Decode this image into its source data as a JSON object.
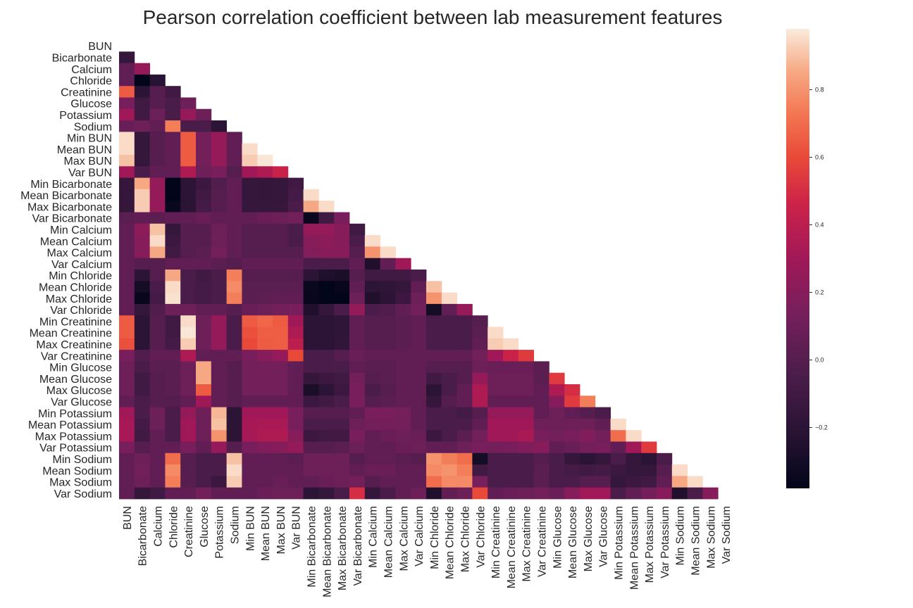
{
  "chart_data": {
    "type": "heatmap",
    "title": "Pearson correlation coefficient between lab measurement features",
    "mask": "upper-triangle",
    "labels": [
      "BUN",
      "Bicarbonate",
      "Calcium",
      "Chloride",
      "Creatinine",
      "Glucose",
      "Potassium",
      "Sodium",
      "Min BUN",
      "Mean BUN",
      "Max BUN",
      "Var BUN",
      "Min Bicarbonate",
      "Mean Bicarbonate",
      "Max Bicarbonate",
      "Var Bicarbonate",
      "Min Calcium",
      "Mean Calcium",
      "Max Calcium",
      "Var Calcium",
      "Min Chloride",
      "Mean Chloride",
      "Max Chloride",
      "Var Chloride",
      "Min Creatinine",
      "Mean Creatinine",
      "Max Creatinine",
      "Var Creatinine",
      "Min Glucose",
      "Mean Glucose",
      "Max Glucose",
      "Var Glucose",
      "Min Potassium",
      "Mean Potassium",
      "Max Potassium",
      "Var Potassium",
      "Min Sodium",
      "Mean Sodium",
      "Max Sodium",
      "Var Sodium"
    ],
    "colorbar": {
      "min": -0.38,
      "max": 0.98,
      "ticks": [
        -0.2,
        0.0,
        0.2,
        0.4,
        0.6,
        0.8
      ],
      "tick_labels": [
        "−0.2",
        "0.0",
        "0.2",
        "0.4",
        "0.6",
        "0.8"
      ],
      "colormap": "rocket"
    },
    "lower_triangle_rows": [
      [],
      [
        -0.15
      ],
      [
        0.05,
        0.25
      ],
      [
        0.05,
        -0.38,
        -0.22
      ],
      [
        0.65,
        -0.2,
        0.0,
        -0.1
      ],
      [
        0.15,
        -0.1,
        0.0,
        -0.05,
        0.1
      ],
      [
        0.3,
        -0.1,
        0.1,
        -0.05,
        0.25,
        0.1
      ],
      [
        0.08,
        0.1,
        0.05,
        0.75,
        -0.05,
        -0.05,
        -0.2
      ],
      [
        0.95,
        -0.15,
        0.0,
        0.05,
        0.65,
        0.12,
        0.25,
        0.05
      ],
      [
        0.95,
        -0.15,
        0.0,
        0.05,
        0.65,
        0.12,
        0.25,
        0.05,
        0.95
      ],
      [
        0.9,
        -0.15,
        0.0,
        0.05,
        0.65,
        0.12,
        0.25,
        0.05,
        0.92,
        0.97
      ],
      [
        0.3,
        -0.05,
        0.05,
        0.05,
        0.35,
        0.1,
        0.15,
        0.0,
        0.3,
        0.35,
        0.45
      ],
      [
        -0.15,
        0.85,
        0.25,
        -0.38,
        -0.2,
        -0.12,
        -0.02,
        0.05,
        -0.15,
        -0.16,
        -0.15,
        -0.1
      ],
      [
        -0.15,
        0.92,
        0.25,
        -0.38,
        -0.2,
        -0.1,
        0.0,
        0.05,
        -0.15,
        -0.16,
        -0.15,
        -0.08,
        0.95
      ],
      [
        -0.15,
        0.92,
        0.25,
        -0.35,
        -0.2,
        -0.08,
        0.0,
        0.05,
        -0.15,
        -0.15,
        -0.14,
        -0.05,
        0.85,
        0.95
      ],
      [
        0.02,
        0.05,
        0.02,
        0.05,
        0.05,
        0.08,
        0.05,
        0.05,
        0.05,
        0.08,
        0.1,
        0.12,
        -0.35,
        -0.1,
        0.15
      ],
      [
        0.05,
        0.22,
        0.9,
        -0.15,
        0.0,
        0.0,
        0.1,
        0.05,
        0.0,
        0.0,
        0.0,
        -0.05,
        0.25,
        0.25,
        0.2,
        -0.1
      ],
      [
        0.05,
        0.2,
        0.95,
        -0.12,
        0.0,
        0.0,
        0.1,
        0.05,
        0.0,
        0.0,
        0.0,
        -0.05,
        0.2,
        0.22,
        0.2,
        -0.05,
        0.95
      ],
      [
        0.05,
        0.2,
        0.85,
        -0.1,
        0.0,
        0.02,
        0.12,
        0.05,
        0.0,
        0.0,
        0.0,
        0.0,
        0.18,
        0.2,
        0.2,
        0.0,
        0.8,
        0.95
      ],
      [
        0.05,
        0.0,
        0.0,
        0.05,
        0.05,
        0.05,
        0.02,
        0.0,
        0.05,
        0.05,
        0.05,
        0.05,
        -0.05,
        -0.05,
        -0.05,
        0.05,
        -0.25,
        0.05,
        0.3
      ],
      [
        0.05,
        -0.2,
        0.0,
        0.85,
        -0.05,
        -0.1,
        -0.05,
        0.75,
        0.0,
        0.0,
        0.0,
        0.0,
        -0.2,
        -0.25,
        -0.28,
        0.0,
        -0.1,
        -0.1,
        -0.1,
        -0.05
      ],
      [
        0.05,
        -0.3,
        -0.05,
        0.95,
        -0.05,
        -0.08,
        -0.05,
        0.78,
        0.02,
        0.02,
        0.02,
        0.02,
        -0.35,
        -0.38,
        -0.36,
        0.05,
        -0.2,
        -0.18,
        -0.15,
        0.05,
        0.9
      ],
      [
        0.05,
        -0.36,
        -0.08,
        0.96,
        -0.05,
        -0.08,
        -0.05,
        0.75,
        0.02,
        0.03,
        0.05,
        0.05,
        -0.36,
        -0.38,
        -0.38,
        0.1,
        -0.25,
        -0.2,
        -0.12,
        0.1,
        0.8,
        0.95
      ],
      [
        0.05,
        -0.15,
        -0.02,
        0.1,
        0.1,
        0.05,
        0.05,
        0.0,
        0.08,
        0.1,
        0.12,
        0.15,
        -0.25,
        -0.15,
        -0.05,
        0.25,
        -0.05,
        -0.02,
        0.05,
        0.12,
        -0.3,
        0.05,
        0.25
      ],
      [
        0.65,
        -0.2,
        0.0,
        -0.1,
        0.95,
        0.1,
        0.25,
        -0.05,
        0.65,
        0.68,
        0.65,
        0.3,
        -0.2,
        -0.2,
        -0.18,
        0.05,
        0.0,
        0.0,
        0.02,
        0.05,
        -0.05,
        -0.05,
        -0.05,
        0.0
      ],
      [
        0.65,
        -0.2,
        0.0,
        -0.1,
        0.97,
        0.1,
        0.25,
        -0.05,
        0.62,
        0.66,
        0.66,
        0.35,
        -0.2,
        -0.2,
        -0.18,
        0.05,
        0.0,
        0.0,
        0.02,
        0.05,
        -0.05,
        -0.05,
        -0.05,
        0.02,
        0.95
      ],
      [
        0.62,
        -0.2,
        0.0,
        -0.08,
        0.92,
        0.1,
        0.25,
        -0.05,
        0.6,
        0.65,
        0.66,
        0.4,
        -0.2,
        -0.2,
        -0.17,
        0.05,
        0.0,
        0.0,
        0.02,
        0.05,
        -0.05,
        -0.05,
        -0.05,
        0.05,
        0.92,
        0.95
      ],
      [
        0.15,
        -0.02,
        0.05,
        0.05,
        0.35,
        0.05,
        0.05,
        0.05,
        0.15,
        0.2,
        0.25,
        0.6,
        -0.05,
        -0.05,
        0.0,
        0.08,
        0.05,
        0.05,
        0.05,
        0.05,
        0.05,
        0.05,
        0.05,
        0.12,
        0.3,
        0.45,
        0.55
      ],
      [
        0.1,
        -0.05,
        0.02,
        0.02,
        0.1,
        0.85,
        0.05,
        0.0,
        0.12,
        0.12,
        0.12,
        0.05,
        -0.05,
        -0.05,
        -0.05,
        0.05,
        0.02,
        0.02,
        0.05,
        0.05,
        0.0,
        0.0,
        0.0,
        0.1,
        0.08,
        0.08,
        0.08,
        0.02
      ],
      [
        0.1,
        -0.1,
        0.0,
        0.02,
        0.1,
        0.85,
        0.05,
        0.0,
        0.12,
        0.12,
        0.12,
        0.05,
        -0.15,
        -0.12,
        -0.1,
        0.12,
        0.0,
        0.02,
        0.05,
        0.05,
        -0.1,
        -0.05,
        0.0,
        0.25,
        0.1,
        0.1,
        0.1,
        0.02,
        0.55
      ],
      [
        0.1,
        -0.1,
        0.0,
        0.02,
        0.1,
        0.65,
        0.05,
        0.0,
        0.12,
        0.12,
        0.12,
        0.05,
        -0.28,
        -0.2,
        -0.12,
        0.15,
        -0.05,
        0.0,
        0.05,
        0.05,
        -0.2,
        -0.05,
        0.05,
        0.35,
        0.1,
        0.1,
        0.1,
        0.05,
        0.35,
        0.5
      ],
      [
        0.05,
        -0.05,
        0.0,
        0.0,
        0.05,
        0.3,
        0.05,
        0.0,
        0.05,
        0.05,
        0.05,
        0.05,
        -0.12,
        -0.1,
        -0.05,
        0.15,
        0.0,
        0.02,
        0.05,
        0.05,
        -0.15,
        0.0,
        0.05,
        0.35,
        0.05,
        0.05,
        0.05,
        0.05,
        0.2,
        0.55,
        0.75
      ],
      [
        0.3,
        -0.05,
        0.1,
        -0.05,
        0.25,
        0.1,
        0.88,
        -0.2,
        0.3,
        0.3,
        0.3,
        0.15,
        0.0,
        0.0,
        0.0,
        0.05,
        0.15,
        0.15,
        0.12,
        0.05,
        -0.05,
        -0.05,
        -0.08,
        0.0,
        0.25,
        0.25,
        0.25,
        0.05,
        0.1,
        0.05,
        0.0,
        -0.05
      ],
      [
        0.32,
        -0.08,
        0.1,
        -0.05,
        0.3,
        0.1,
        0.9,
        -0.2,
        0.32,
        0.33,
        0.33,
        0.15,
        -0.05,
        -0.05,
        -0.05,
        0.1,
        0.12,
        0.12,
        0.12,
        0.05,
        -0.05,
        -0.05,
        -0.05,
        0.05,
        0.3,
        0.3,
        0.3,
        0.1,
        0.1,
        0.1,
        0.1,
        0.05,
        0.95
      ],
      [
        0.32,
        -0.1,
        0.05,
        -0.05,
        0.3,
        0.1,
        0.8,
        -0.2,
        0.32,
        0.35,
        0.35,
        0.2,
        -0.12,
        -0.1,
        -0.1,
        0.15,
        0.05,
        0.08,
        0.1,
        0.08,
        -0.12,
        -0.05,
        0.02,
        0.12,
        0.3,
        0.3,
        0.33,
        0.15,
        0.12,
        0.15,
        0.18,
        0.12,
        0.7,
        0.95
      ],
      [
        0.15,
        0.0,
        0.05,
        0.05,
        0.15,
        0.05,
        0.25,
        0.0,
        0.15,
        0.18,
        0.2,
        0.25,
        0.0,
        0.0,
        0.02,
        0.1,
        0.05,
        0.05,
        0.08,
        0.1,
        0.05,
        0.05,
        0.1,
        0.15,
        0.12,
        0.15,
        0.18,
        0.2,
        0.05,
        0.08,
        0.12,
        0.15,
        0.05,
        0.3,
        0.55
      ],
      [
        0.05,
        0.1,
        0.05,
        0.7,
        0.0,
        -0.05,
        -0.05,
        0.9,
        0.05,
        0.05,
        0.05,
        0.02,
        0.1,
        0.1,
        0.1,
        0.0,
        0.05,
        0.05,
        0.02,
        0.0,
        0.8,
        0.75,
        0.7,
        -0.3,
        -0.05,
        -0.05,
        -0.05,
        0.0,
        -0.05,
        -0.15,
        -0.2,
        -0.15,
        -0.05,
        -0.15,
        -0.2,
        -0.05
      ],
      [
        0.05,
        0.12,
        0.05,
        0.78,
        0.0,
        -0.05,
        -0.05,
        0.95,
        0.05,
        0.05,
        0.05,
        0.05,
        0.1,
        0.1,
        0.1,
        0.05,
        0.08,
        0.08,
        0.05,
        0.05,
        0.78,
        0.8,
        0.75,
        -0.1,
        -0.05,
        -0.05,
        -0.05,
        0.02,
        -0.05,
        -0.08,
        -0.1,
        -0.08,
        -0.12,
        -0.15,
        -0.15,
        0.0,
        0.95
      ],
      [
        0.05,
        0.1,
        0.05,
        0.75,
        0.0,
        -0.05,
        -0.12,
        0.92,
        0.05,
        0.05,
        0.08,
        0.05,
        0.05,
        0.08,
        0.1,
        0.12,
        0.0,
        0.05,
        0.05,
        0.05,
        0.7,
        0.78,
        0.78,
        0.15,
        -0.05,
        -0.05,
        -0.05,
        0.02,
        -0.05,
        -0.05,
        0.0,
        0.0,
        -0.15,
        -0.12,
        -0.1,
        0.05,
        0.85,
        0.95
      ],
      [
        0.05,
        -0.15,
        -0.1,
        0.05,
        0.05,
        0.12,
        0.05,
        0.05,
        0.05,
        0.08,
        0.1,
        0.1,
        -0.2,
        -0.15,
        -0.05,
        0.5,
        -0.15,
        -0.05,
        0.05,
        0.1,
        -0.25,
        0.05,
        0.1,
        0.6,
        0.05,
        0.08,
        0.1,
        0.12,
        0.08,
        0.2,
        0.3,
        0.3,
        -0.05,
        0.05,
        0.12,
        0.2,
        -0.25,
        -0.05,
        0.2
      ]
    ]
  }
}
